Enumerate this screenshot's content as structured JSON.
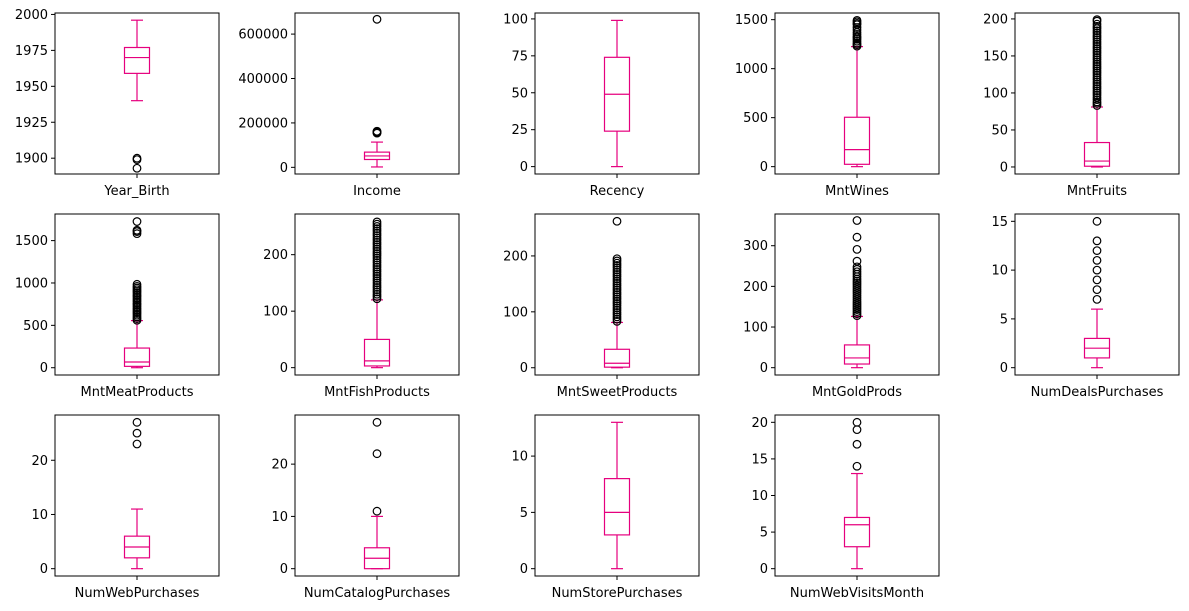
{
  "style": {
    "box_color": "#e6007e",
    "outlier_color": "#000000",
    "axis_color": "#000000"
  },
  "chart_data": [
    {
      "type": "box",
      "xlabel": "Year_Birth",
      "ylim": [
        1889,
        2001
      ],
      "yticks": [
        1900,
        1925,
        1950,
        1975,
        2000
      ],
      "min": 1940,
      "q1": 1959,
      "median": 1970,
      "q3": 1977,
      "max": 1996,
      "outliers": [
        1893,
        1899,
        1900
      ]
    },
    {
      "type": "box",
      "xlabel": "Income",
      "ylim": [
        -30000,
        695000
      ],
      "yticks": [
        0,
        200000,
        400000,
        600000
      ],
      "min": 1730,
      "q1": 35300,
      "median": 51400,
      "q3": 68500,
      "max": 113700,
      "outliers": [
        153924,
        156924,
        157146,
        160803,
        162397,
        666666
      ]
    },
    {
      "type": "box",
      "xlabel": "Recency",
      "ylim": [
        -5,
        104
      ],
      "yticks": [
        0,
        25,
        50,
        75,
        100
      ],
      "min": 0,
      "q1": 24,
      "median": 49,
      "q3": 74,
      "max": 99,
      "outliers": []
    },
    {
      "type": "box",
      "xlabel": "MntWines",
      "ylim": [
        -75,
        1568
      ],
      "yticks": [
        0,
        500,
        1000,
        1500
      ],
      "min": 0,
      "q1": 24,
      "median": 174,
      "q3": 504,
      "max": 1225,
      "outliers": [
        1230,
        1245,
        1260,
        1280,
        1300,
        1315,
        1330,
        1350,
        1370,
        1394,
        1420,
        1449,
        1462,
        1478,
        1493
      ]
    },
    {
      "type": "box",
      "xlabel": "MntFruits",
      "ylim": [
        -9.5,
        208
      ],
      "yticks": [
        0,
        50,
        100,
        150,
        200
      ],
      "min": 0,
      "q1": 1,
      "median": 8,
      "q3": 33,
      "max": 81,
      "outliers": [
        83,
        86,
        88,
        91,
        94,
        97,
        100,
        103,
        106,
        109,
        112,
        115,
        118,
        121,
        124,
        127,
        130,
        133,
        136,
        139,
        142,
        145,
        148,
        151,
        154,
        157,
        160,
        163,
        166,
        169,
        172,
        175,
        178,
        181,
        184,
        187,
        190,
        193,
        197,
        199
      ]
    },
    {
      "type": "box",
      "xlabel": "MntMeatProducts",
      "ylim": [
        -86,
        1814
      ],
      "yticks": [
        0,
        500,
        1000,
        1500
      ],
      "min": 0,
      "q1": 16,
      "median": 67,
      "q3": 232,
      "max": 556,
      "outliers": [
        560,
        580,
        600,
        620,
        640,
        660,
        680,
        700,
        720,
        740,
        760,
        780,
        800,
        820,
        840,
        860,
        880,
        900,
        920,
        940,
        960,
        984,
        1582,
        1607,
        1622,
        1725
      ]
    },
    {
      "type": "box",
      "xlabel": "MntFishProducts",
      "ylim": [
        -13,
        272
      ],
      "yticks": [
        0,
        100,
        200
      ],
      "min": 0,
      "q1": 3,
      "median": 12,
      "q3": 50,
      "max": 120,
      "outliers": [
        122,
        126,
        130,
        134,
        138,
        142,
        146,
        150,
        154,
        158,
        162,
        166,
        170,
        174,
        178,
        182,
        186,
        190,
        194,
        198,
        202,
        206,
        210,
        214,
        218,
        222,
        226,
        230,
        234,
        238,
        242,
        246,
        250,
        254,
        258
      ]
    },
    {
      "type": "box",
      "xlabel": "MntSweetProducts",
      "ylim": [
        -13,
        275
      ],
      "yticks": [
        0,
        100,
        200
      ],
      "min": 0,
      "q1": 1,
      "median": 8,
      "q3": 33,
      "max": 81,
      "outliers": [
        83,
        87,
        91,
        95,
        99,
        103,
        107,
        111,
        115,
        119,
        123,
        127,
        131,
        135,
        139,
        143,
        147,
        151,
        155,
        159,
        163,
        167,
        171,
        175,
        179,
        183,
        187,
        191,
        195,
        262
      ]
    },
    {
      "type": "box",
      "xlabel": "MntGoldProds",
      "ylim": [
        -18,
        378
      ],
      "yticks": [
        0,
        100,
        200,
        300
      ],
      "min": 0,
      "q1": 9,
      "median": 24,
      "q3": 56,
      "max": 126,
      "outliers": [
        128,
        133,
        138,
        143,
        148,
        153,
        158,
        163,
        168,
        173,
        178,
        183,
        188,
        193,
        198,
        203,
        208,
        213,
        218,
        224,
        230,
        236,
        242,
        248,
        262,
        291,
        321,
        362
      ]
    },
    {
      "type": "box",
      "xlabel": "NumDealsPurchases",
      "ylim": [
        -0.75,
        15.75
      ],
      "yticks": [
        0,
        5,
        10,
        15
      ],
      "min": 0,
      "q1": 1,
      "median": 2,
      "q3": 3,
      "max": 6,
      "outliers": [
        7,
        8,
        9,
        10,
        11,
        12,
        13,
        15
      ]
    },
    {
      "type": "box",
      "xlabel": "NumWebPurchases",
      "ylim": [
        -1.35,
        28.35
      ],
      "yticks": [
        0,
        10,
        20
      ],
      "min": 0,
      "q1": 2,
      "median": 4,
      "q3": 6,
      "max": 11,
      "outliers": [
        23,
        25,
        27
      ]
    },
    {
      "type": "box",
      "xlabel": "NumCatalogPurchases",
      "ylim": [
        -1.4,
        29.4
      ],
      "yticks": [
        0,
        10,
        20
      ],
      "min": 0,
      "q1": 0,
      "median": 2,
      "q3": 4,
      "max": 10,
      "outliers": [
        11,
        22,
        28
      ]
    },
    {
      "type": "box",
      "xlabel": "NumStorePurchases",
      "ylim": [
        -0.65,
        13.65
      ],
      "yticks": [
        0,
        5,
        10
      ],
      "min": 0,
      "q1": 3,
      "median": 5,
      "q3": 8,
      "max": 13,
      "outliers": []
    },
    {
      "type": "box",
      "xlabel": "NumWebVisitsMonth",
      "ylim": [
        -1,
        21
      ],
      "yticks": [
        0,
        5,
        10,
        15,
        20
      ],
      "min": 0,
      "q1": 3,
      "median": 6,
      "q3": 7,
      "max": 13,
      "outliers": [
        14,
        17,
        19,
        20
      ]
    }
  ]
}
